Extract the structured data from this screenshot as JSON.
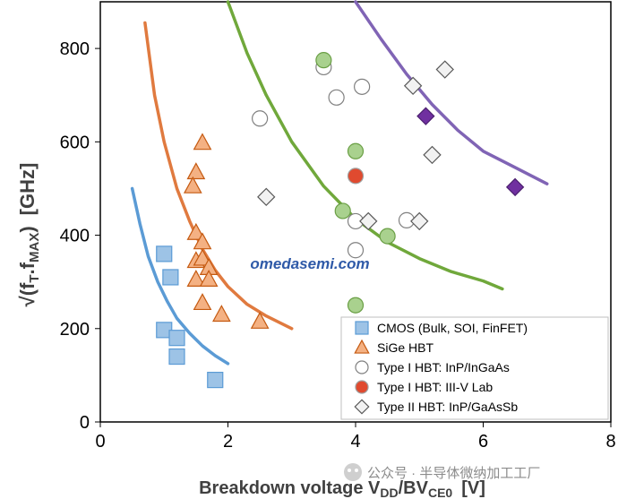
{
  "chart_data": {
    "type": "scatter",
    "x_axis": {
      "range": [
        0,
        8
      ],
      "ticks": [
        "0",
        "2",
        "4",
        "6",
        "8"
      ]
    },
    "y_axis": {
      "range": [
        0,
        900
      ],
      "ticks": [
        "0",
        "200",
        "400",
        "600",
        "800"
      ]
    },
    "xlabel": {
      "main": "Breakdown voltage V",
      "sub1": "DD",
      "sep": "/BV",
      "sub2": "CE0",
      "unit": "[V]"
    },
    "ylabel": {
      "main": "√(f",
      "sub1": "T",
      "mid": ".f",
      "sub2": "MAX",
      "close": ")",
      "unit": "[GHz]"
    },
    "grid": false,
    "legend_position": "bottom-right",
    "series": [
      {
        "name": "CMOS (Bulk, SOI, FinFET)",
        "marker": "square",
        "fill": "#9dc3e6",
        "stroke": "#5b9bd5",
        "points": [
          [
            1.0,
            360
          ],
          [
            1.1,
            310
          ],
          [
            1.0,
            197
          ],
          [
            1.2,
            180
          ],
          [
            1.2,
            140
          ],
          [
            1.8,
            90
          ]
        ]
      },
      {
        "name": "SiGe HBT",
        "marker": "triangle",
        "fill": "#f4b183",
        "stroke": "#c55a11",
        "points": [
          [
            1.6,
            598
          ],
          [
            1.5,
            535
          ],
          [
            1.45,
            505
          ],
          [
            1.5,
            405
          ],
          [
            1.6,
            385
          ],
          [
            1.5,
            345
          ],
          [
            1.6,
            350
          ],
          [
            1.7,
            330
          ],
          [
            1.5,
            305
          ],
          [
            1.7,
            305
          ],
          [
            1.6,
            255
          ],
          [
            1.9,
            230
          ],
          [
            2.5,
            215
          ]
        ]
      },
      {
        "name": "Type I HBT: InP/InGaAs",
        "marker": "circle",
        "fill": "#ffffff",
        "stroke": "#808080",
        "points": [
          [
            3.5,
            760
          ],
          [
            3.7,
            695
          ],
          [
            4.1,
            718
          ],
          [
            2.5,
            650
          ],
          [
            4.0,
            430
          ],
          [
            4.8,
            432
          ],
          [
            4.0,
            368
          ]
        ]
      },
      {
        "name": "Type I HBT: III-V Lab",
        "marker": "circle",
        "fill": "#e04a2f",
        "stroke": "#a0a0a0",
        "points": [
          [
            4.0,
            527
          ]
        ]
      },
      {
        "name": "Type II HBT: InP/GaAsSb",
        "marker": "diamond",
        "fill": "#f2f2f2",
        "stroke": "#595959",
        "points": [
          [
            5.4,
            755
          ],
          [
            4.9,
            720
          ],
          [
            5.2,
            572
          ],
          [
            2.6,
            482
          ],
          [
            4.2,
            430
          ],
          [
            5.0,
            430
          ]
        ]
      }
    ],
    "extra_series": [
      {
        "marker": "circle",
        "fill": "#a9d18e",
        "stroke": "#6a9f45",
        "points": [
          [
            3.5,
            775
          ],
          [
            4.0,
            580
          ],
          [
            3.8,
            452
          ],
          [
            4.5,
            398
          ],
          [
            4.0,
            250
          ]
        ]
      },
      {
        "marker": "diamond",
        "fill": "#7030a0",
        "stroke": "#4b1f6e",
        "points": [
          [
            5.1,
            655
          ],
          [
            6.5,
            503
          ]
        ]
      }
    ],
    "trend_lines": [
      {
        "color": "#5b9bd5",
        "points": [
          [
            0.5,
            500
          ],
          [
            0.62,
            425
          ],
          [
            0.75,
            355
          ],
          [
            0.9,
            300
          ],
          [
            1.05,
            258
          ],
          [
            1.2,
            222
          ],
          [
            1.4,
            190
          ],
          [
            1.6,
            163
          ],
          [
            1.8,
            142
          ],
          [
            2.0,
            125
          ]
        ]
      },
      {
        "color": "#e07a3f",
        "points": [
          [
            0.7,
            855
          ],
          [
            0.85,
            700
          ],
          [
            1.0,
            600
          ],
          [
            1.2,
            500
          ],
          [
            1.4,
            430
          ],
          [
            1.6,
            370
          ],
          [
            1.8,
            325
          ],
          [
            2.0,
            290
          ],
          [
            2.3,
            252
          ],
          [
            2.6,
            227
          ],
          [
            3.0,
            200
          ]
        ]
      },
      {
        "color": "#70a83b",
        "points": [
          [
            2.0,
            900
          ],
          [
            2.3,
            790
          ],
          [
            2.6,
            700
          ],
          [
            3.0,
            600
          ],
          [
            3.5,
            505
          ],
          [
            4.0,
            435
          ],
          [
            4.5,
            385
          ],
          [
            5.0,
            350
          ],
          [
            5.5,
            322
          ],
          [
            6.0,
            302
          ],
          [
            6.3,
            285
          ]
        ]
      },
      {
        "color": "#8064b5",
        "points": [
          [
            4.0,
            900
          ],
          [
            4.4,
            820
          ],
          [
            4.8,
            745
          ],
          [
            5.2,
            680
          ],
          [
            5.6,
            625
          ],
          [
            6.0,
            580
          ],
          [
            6.5,
            545
          ],
          [
            7.0,
            510
          ]
        ]
      }
    ]
  },
  "watermarks": {
    "center": "omedasemi.com",
    "footer": "公众号 · 半导体微纳加工工厂"
  }
}
